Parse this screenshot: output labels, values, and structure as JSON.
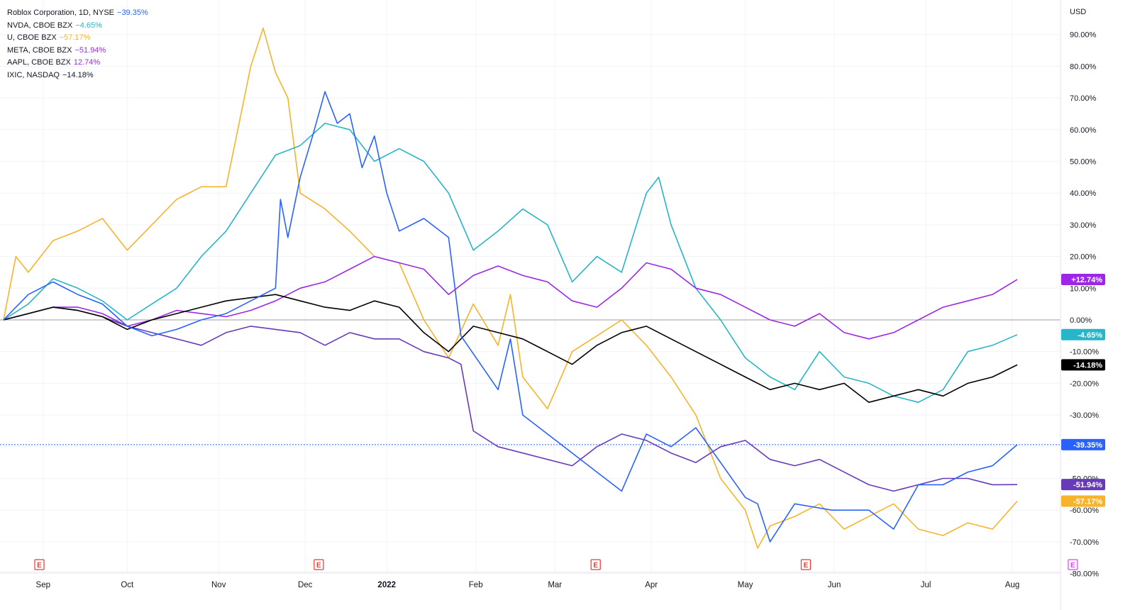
{
  "chart_data": {
    "type": "line",
    "currency_label": "USD",
    "ylim": [
      -80,
      95
    ],
    "y_ticks": [
      "90.00%",
      "80.00%",
      "70.00%",
      "60.00%",
      "50.00%",
      "40.00%",
      "30.00%",
      "20.00%",
      "10.00%",
      "0.00%",
      "-10.00%",
      "-20.00%",
      "-30.00%",
      "-40.00%",
      "-50.00%",
      "-60.00%",
      "-70.00%",
      "-80.00%"
    ],
    "y_tick_values": [
      90,
      80,
      70,
      60,
      50,
      40,
      30,
      20,
      10,
      0,
      -10,
      -20,
      -30,
      -40,
      -50,
      -60,
      -70,
      -80
    ],
    "x_ticks": [
      "Sep",
      "Oct",
      "Nov",
      "Dec",
      "2022",
      "Feb",
      "Mar",
      "Apr",
      "May",
      "Jun",
      "Jul",
      "Aug"
    ],
    "x_tick_positions": [
      0.16,
      0.5,
      0.87,
      1.22,
      1.55,
      1.91,
      2.23,
      2.62,
      3.0,
      3.36,
      3.73,
      4.08
    ],
    "x_tick_note": "positions in months after 2021-08-11",
    "earnings_markers": {
      "label": "E",
      "red_at_months": [
        0.0,
        1.13,
        2.25,
        3.1
      ],
      "purple_at_months": [
        4.18
      ]
    },
    "series": [
      {
        "name": "Roblox Corporation, 1D, NYSE",
        "change": "−39.35%",
        "last_label": "-39.35%",
        "last": -39.35,
        "color": "#2962ff",
        "points": [
          [
            0,
            0
          ],
          [
            0.1,
            8
          ],
          [
            0.2,
            12
          ],
          [
            0.3,
            8
          ],
          [
            0.4,
            5
          ],
          [
            0.5,
            -2
          ],
          [
            0.6,
            -5
          ],
          [
            0.7,
            -3
          ],
          [
            0.8,
            0
          ],
          [
            0.9,
            2
          ],
          [
            1.0,
            6
          ],
          [
            1.1,
            10
          ],
          [
            1.12,
            38
          ],
          [
            1.15,
            26
          ],
          [
            1.2,
            45
          ],
          [
            1.25,
            58
          ],
          [
            1.3,
            72
          ],
          [
            1.35,
            62
          ],
          [
            1.4,
            65
          ],
          [
            1.45,
            48
          ],
          [
            1.5,
            58
          ],
          [
            1.55,
            40
          ],
          [
            1.6,
            28
          ],
          [
            1.7,
            32
          ],
          [
            1.8,
            26
          ],
          [
            1.85,
            -5
          ],
          [
            2.0,
            -22
          ],
          [
            2.05,
            -6
          ],
          [
            2.1,
            -30
          ],
          [
            2.2,
            -36
          ],
          [
            2.3,
            -42
          ],
          [
            2.4,
            -48
          ],
          [
            2.5,
            -54
          ],
          [
            2.6,
            -36
          ],
          [
            2.7,
            -40
          ],
          [
            2.8,
            -34
          ],
          [
            2.9,
            -45
          ],
          [
            3.0,
            -56
          ],
          [
            3.05,
            -58
          ],
          [
            3.1,
            -70
          ],
          [
            3.2,
            -58
          ],
          [
            3.35,
            -60
          ],
          [
            3.5,
            -60
          ],
          [
            3.6,
            -66
          ],
          [
            3.7,
            -52
          ],
          [
            3.8,
            -52
          ],
          [
            3.9,
            -48
          ],
          [
            4.0,
            -46
          ],
          [
            4.1,
            -39.35
          ]
        ]
      },
      {
        "name": "NVDA, CBOE BZX",
        "change": "−4.65%",
        "last_label": "-4.65%",
        "last": -4.65,
        "color": "#26b5c9",
        "points": [
          [
            0,
            0
          ],
          [
            0.1,
            5
          ],
          [
            0.2,
            13
          ],
          [
            0.3,
            10
          ],
          [
            0.4,
            6
          ],
          [
            0.5,
            0
          ],
          [
            0.6,
            5
          ],
          [
            0.7,
            10
          ],
          [
            0.8,
            20
          ],
          [
            0.9,
            28
          ],
          [
            1.0,
            40
          ],
          [
            1.1,
            52
          ],
          [
            1.2,
            55
          ],
          [
            1.3,
            62
          ],
          [
            1.4,
            60
          ],
          [
            1.5,
            50
          ],
          [
            1.6,
            54
          ],
          [
            1.7,
            50
          ],
          [
            1.8,
            40
          ],
          [
            1.9,
            22
          ],
          [
            2.0,
            28
          ],
          [
            2.1,
            35
          ],
          [
            2.2,
            30
          ],
          [
            2.3,
            12
          ],
          [
            2.4,
            20
          ],
          [
            2.5,
            15
          ],
          [
            2.6,
            40
          ],
          [
            2.65,
            45
          ],
          [
            2.7,
            30
          ],
          [
            2.8,
            10
          ],
          [
            2.9,
            0
          ],
          [
            3.0,
            -12
          ],
          [
            3.1,
            -18
          ],
          [
            3.2,
            -22
          ],
          [
            3.3,
            -10
          ],
          [
            3.4,
            -18
          ],
          [
            3.5,
            -20
          ],
          [
            3.6,
            -24
          ],
          [
            3.7,
            -26
          ],
          [
            3.8,
            -22
          ],
          [
            3.9,
            -10
          ],
          [
            4.0,
            -8
          ],
          [
            4.1,
            -4.65
          ]
        ]
      },
      {
        "name": "U, CBOE BZX",
        "change": "−57.17%",
        "last_label": "-57.17%",
        "last": -57.17,
        "color": "#f7b32b",
        "points": [
          [
            0,
            0
          ],
          [
            0.05,
            20
          ],
          [
            0.1,
            15
          ],
          [
            0.2,
            25
          ],
          [
            0.3,
            28
          ],
          [
            0.4,
            32
          ],
          [
            0.5,
            22
          ],
          [
            0.6,
            30
          ],
          [
            0.7,
            38
          ],
          [
            0.8,
            42
          ],
          [
            0.9,
            42
          ],
          [
            1.0,
            80
          ],
          [
            1.05,
            92
          ],
          [
            1.1,
            78
          ],
          [
            1.15,
            70
          ],
          [
            1.2,
            40
          ],
          [
            1.3,
            35
          ],
          [
            1.4,
            28
          ],
          [
            1.5,
            20
          ],
          [
            1.6,
            18
          ],
          [
            1.7,
            0
          ],
          [
            1.8,
            -12
          ],
          [
            1.9,
            5
          ],
          [
            2.0,
            -8
          ],
          [
            2.05,
            8
          ],
          [
            2.1,
            -18
          ],
          [
            2.2,
            -28
          ],
          [
            2.3,
            -10
          ],
          [
            2.4,
            -5
          ],
          [
            2.5,
            0
          ],
          [
            2.6,
            -8
          ],
          [
            2.7,
            -18
          ],
          [
            2.8,
            -30
          ],
          [
            2.9,
            -50
          ],
          [
            3.0,
            -60
          ],
          [
            3.05,
            -72
          ],
          [
            3.1,
            -65
          ],
          [
            3.2,
            -62
          ],
          [
            3.3,
            -58
          ],
          [
            3.4,
            -66
          ],
          [
            3.5,
            -62
          ],
          [
            3.6,
            -58
          ],
          [
            3.7,
            -66
          ],
          [
            3.8,
            -68
          ],
          [
            3.9,
            -64
          ],
          [
            4.0,
            -66
          ],
          [
            4.1,
            -57.17
          ]
        ]
      },
      {
        "name": "META, CBOE BZX",
        "change": "−51.94%",
        "last_label": "-51.94%",
        "last": -51.94,
        "color": "#673ab7",
        "points": [
          [
            0,
            0
          ],
          [
            0.1,
            2
          ],
          [
            0.2,
            4
          ],
          [
            0.3,
            3
          ],
          [
            0.4,
            1
          ],
          [
            0.5,
            -2
          ],
          [
            0.6,
            -4
          ],
          [
            0.7,
            -6
          ],
          [
            0.8,
            -8
          ],
          [
            0.9,
            -4
          ],
          [
            1.0,
            -2
          ],
          [
            1.1,
            -3
          ],
          [
            1.2,
            -4
          ],
          [
            1.3,
            -8
          ],
          [
            1.4,
            -4
          ],
          [
            1.5,
            -6
          ],
          [
            1.6,
            -6
          ],
          [
            1.7,
            -10
          ],
          [
            1.8,
            -12
          ],
          [
            1.85,
            -14
          ],
          [
            1.9,
            -35
          ],
          [
            2.0,
            -40
          ],
          [
            2.1,
            -42
          ],
          [
            2.2,
            -44
          ],
          [
            2.3,
            -46
          ],
          [
            2.4,
            -40
          ],
          [
            2.5,
            -36
          ],
          [
            2.6,
            -38
          ],
          [
            2.7,
            -42
          ],
          [
            2.8,
            -45
          ],
          [
            2.9,
            -40
          ],
          [
            3.0,
            -38
          ],
          [
            3.1,
            -44
          ],
          [
            3.2,
            -46
          ],
          [
            3.3,
            -44
          ],
          [
            3.4,
            -48
          ],
          [
            3.5,
            -52
          ],
          [
            3.6,
            -54
          ],
          [
            3.7,
            -52
          ],
          [
            3.8,
            -50
          ],
          [
            3.9,
            -50
          ],
          [
            4.0,
            -52
          ],
          [
            4.1,
            -51.94
          ]
        ]
      },
      {
        "name": "AAPL, CBOE BZX",
        "change": "12.74%",
        "last_label": "+12.74%",
        "last": 12.74,
        "color": "#9c27e6",
        "points": [
          [
            0,
            0
          ],
          [
            0.1,
            2
          ],
          [
            0.2,
            4
          ],
          [
            0.3,
            4
          ],
          [
            0.4,
            2
          ],
          [
            0.5,
            -2
          ],
          [
            0.6,
            0
          ],
          [
            0.7,
            3
          ],
          [
            0.8,
            2
          ],
          [
            0.9,
            1
          ],
          [
            1.0,
            3
          ],
          [
            1.1,
            6
          ],
          [
            1.2,
            10
          ],
          [
            1.3,
            12
          ],
          [
            1.4,
            16
          ],
          [
            1.5,
            20
          ],
          [
            1.6,
            18
          ],
          [
            1.7,
            16
          ],
          [
            1.8,
            8
          ],
          [
            1.9,
            14
          ],
          [
            2.0,
            17
          ],
          [
            2.1,
            14
          ],
          [
            2.2,
            12
          ],
          [
            2.3,
            6
          ],
          [
            2.4,
            4
          ],
          [
            2.5,
            10
          ],
          [
            2.6,
            18
          ],
          [
            2.7,
            16
          ],
          [
            2.8,
            10
          ],
          [
            2.9,
            8
          ],
          [
            3.0,
            4
          ],
          [
            3.1,
            0
          ],
          [
            3.2,
            -2
          ],
          [
            3.3,
            2
          ],
          [
            3.4,
            -4
          ],
          [
            3.5,
            -6
          ],
          [
            3.6,
            -4
          ],
          [
            3.7,
            0
          ],
          [
            3.8,
            4
          ],
          [
            3.9,
            6
          ],
          [
            4.0,
            8
          ],
          [
            4.1,
            12.74
          ]
        ]
      },
      {
        "name": "IXIC, NASDAQ",
        "change": "−14.18%",
        "last_label": "-14.18%",
        "last": -14.18,
        "color": "#000000",
        "points": [
          [
            0,
            0
          ],
          [
            0.1,
            2
          ],
          [
            0.2,
            4
          ],
          [
            0.3,
            3
          ],
          [
            0.4,
            1
          ],
          [
            0.5,
            -3
          ],
          [
            0.6,
            0
          ],
          [
            0.7,
            2
          ],
          [
            0.8,
            4
          ],
          [
            0.9,
            6
          ],
          [
            1.0,
            7
          ],
          [
            1.1,
            8
          ],
          [
            1.2,
            6
          ],
          [
            1.3,
            4
          ],
          [
            1.4,
            3
          ],
          [
            1.5,
            6
          ],
          [
            1.6,
            4
          ],
          [
            1.7,
            -4
          ],
          [
            1.8,
            -10
          ],
          [
            1.9,
            -2
          ],
          [
            2.0,
            -4
          ],
          [
            2.1,
            -6
          ],
          [
            2.2,
            -10
          ],
          [
            2.3,
            -14
          ],
          [
            2.4,
            -8
          ],
          [
            2.5,
            -4
          ],
          [
            2.6,
            -2
          ],
          [
            2.7,
            -6
          ],
          [
            2.8,
            -10
          ],
          [
            2.9,
            -14
          ],
          [
            3.0,
            -18
          ],
          [
            3.1,
            -22
          ],
          [
            3.2,
            -20
          ],
          [
            3.3,
            -22
          ],
          [
            3.4,
            -20
          ],
          [
            3.5,
            -26
          ],
          [
            3.6,
            -24
          ],
          [
            3.7,
            -22
          ],
          [
            3.8,
            -24
          ],
          [
            3.9,
            -20
          ],
          [
            4.0,
            -18
          ],
          [
            4.1,
            -14.18
          ]
        ]
      }
    ]
  }
}
